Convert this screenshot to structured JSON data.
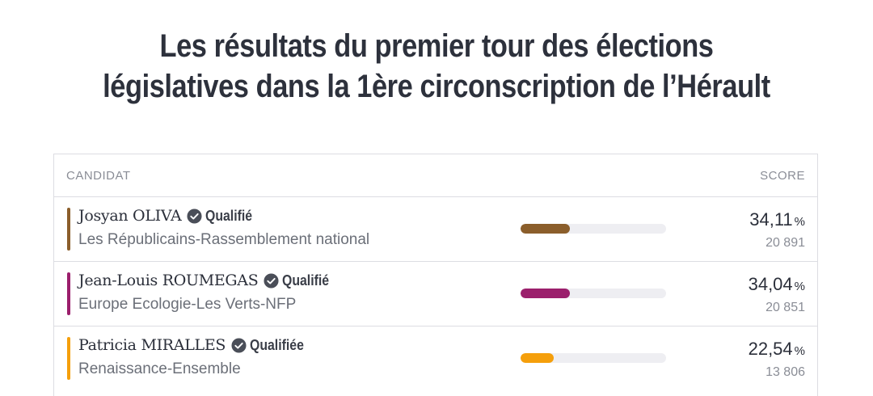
{
  "title": {
    "line1": "Les résultats du premier tour des élections",
    "line2": "législatives dans la 1ère circonscription de l’Hérault"
  },
  "table": {
    "headers": {
      "candidate": "CANDIDAT",
      "score": "SCORE"
    },
    "rows": [
      {
        "name": "Josyan OLIVA",
        "status": "Qualifié",
        "party": "Les Républicains-Rassemblement national",
        "score": "34,11",
        "percent_sign": "%",
        "votes": "20 891",
        "score_value": 34.11,
        "color": "#8b5e2b"
      },
      {
        "name": "Jean-Louis ROUMEGAS",
        "status": "Qualifié",
        "party": "Europe Ecologie-Les Verts-NFP",
        "score": "34,04",
        "percent_sign": "%",
        "votes": "20 851",
        "score_value": 34.04,
        "color": "#9b1f6c"
      },
      {
        "name": "Patricia MIRALLES",
        "status": "Qualifiée",
        "party": "Renaissance-Ensemble",
        "score": "22,54",
        "percent_sign": "%",
        "votes": "13 806",
        "score_value": 22.54,
        "color": "#f59f0b"
      }
    ],
    "icons": {
      "status": "check-circle-icon"
    }
  }
}
